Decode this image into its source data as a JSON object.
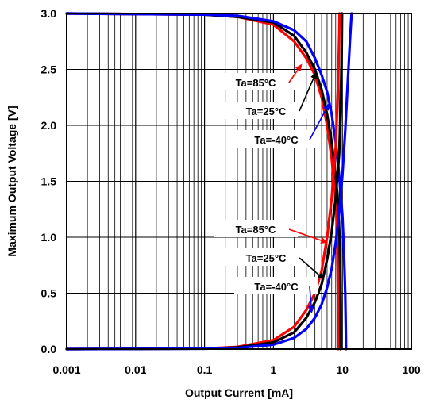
{
  "chart_data": {
    "type": "line",
    "xlabel": "Output Current [mA]",
    "ylabel": "Maximum Output Voltage [V]",
    "xscale": "log",
    "xlim": [
      0.001,
      100
    ],
    "ylim": [
      0.0,
      3.0
    ],
    "x_ticks": [
      "0.001",
      "0.01",
      "0.1",
      "1",
      "10",
      "100"
    ],
    "y_ticks": [
      "0.0",
      "0.5",
      "1.0",
      "1.5",
      "2.0",
      "2.5",
      "3.0"
    ],
    "grid": true,
    "series": [
      {
        "name": "Ta=85°C",
        "color": "#ff0000",
        "group": "upper",
        "points": [
          [
            0.001,
            3.0
          ],
          [
            0.1,
            2.99
          ],
          [
            0.3,
            2.97
          ],
          [
            1,
            2.9
          ],
          [
            2,
            2.75
          ],
          [
            3,
            2.6
          ],
          [
            4,
            2.45
          ],
          [
            5,
            2.25
          ],
          [
            6,
            2.0
          ],
          [
            7,
            1.7
          ],
          [
            7.8,
            1.4
          ],
          [
            8.2,
            1.2
          ],
          [
            8.4,
            1.0
          ],
          [
            8.55,
            0.7
          ],
          [
            8.65,
            0.4
          ],
          [
            8.7,
            0.0
          ]
        ]
      },
      {
        "name": "Ta=25°C",
        "color": "#000000",
        "group": "upper",
        "points": [
          [
            0.001,
            3.0
          ],
          [
            0.1,
            2.99
          ],
          [
            0.3,
            2.97
          ],
          [
            1,
            2.92
          ],
          [
            2,
            2.8
          ],
          [
            3,
            2.65
          ],
          [
            4,
            2.5
          ],
          [
            5,
            2.32
          ],
          [
            6,
            2.1
          ],
          [
            7,
            1.85
          ],
          [
            8,
            1.55
          ],
          [
            8.7,
            1.3
          ],
          [
            9.1,
            1.0
          ],
          [
            9.3,
            0.7
          ],
          [
            9.4,
            0.4
          ],
          [
            9.45,
            0.0
          ]
        ]
      },
      {
        "name": "Ta=-40°C",
        "color": "#0000ff",
        "group": "upper",
        "points": [
          [
            0.001,
            3.0
          ],
          [
            0.1,
            2.99
          ],
          [
            0.3,
            2.98
          ],
          [
            1,
            2.93
          ],
          [
            2,
            2.85
          ],
          [
            3,
            2.75
          ],
          [
            4,
            2.6
          ],
          [
            5,
            2.45
          ],
          [
            6,
            2.3
          ],
          [
            7,
            2.1
          ],
          [
            8,
            1.85
          ],
          [
            9,
            1.55
          ],
          [
            10,
            1.2
          ],
          [
            10.5,
            0.9
          ],
          [
            11,
            0.5
          ],
          [
            11.2,
            0.2
          ],
          [
            11.3,
            0.0
          ]
        ]
      },
      {
        "name": "Ta=85°C",
        "color": "#ff0000",
        "group": "lower",
        "points": [
          [
            0.001,
            0.0
          ],
          [
            0.1,
            0.005
          ],
          [
            0.3,
            0.02
          ],
          [
            1,
            0.08
          ],
          [
            2,
            0.2
          ],
          [
            3,
            0.35
          ],
          [
            4,
            0.5
          ],
          [
            5,
            0.7
          ],
          [
            6,
            1.0
          ],
          [
            7,
            1.35
          ],
          [
            8,
            1.8
          ],
          [
            8.6,
            2.3
          ],
          [
            9,
            2.8
          ],
          [
            9.1,
            3.0
          ]
        ]
      },
      {
        "name": "Ta=25°C",
        "color": "#000000",
        "group": "lower",
        "points": [
          [
            0.001,
            0.0
          ],
          [
            0.1,
            0.004
          ],
          [
            0.3,
            0.015
          ],
          [
            1,
            0.06
          ],
          [
            2,
            0.15
          ],
          [
            3,
            0.28
          ],
          [
            4,
            0.42
          ],
          [
            5,
            0.58
          ],
          [
            6,
            0.8
          ],
          [
            7,
            1.05
          ],
          [
            8,
            1.35
          ],
          [
            9,
            1.75
          ],
          [
            9.5,
            2.2
          ],
          [
            9.8,
            2.7
          ],
          [
            9.9,
            3.0
          ]
        ]
      },
      {
        "name": "Ta=-40°C",
        "color": "#0000ff",
        "group": "lower",
        "points": [
          [
            0.001,
            0.0
          ],
          [
            0.1,
            0.003
          ],
          [
            0.3,
            0.01
          ],
          [
            1,
            0.04
          ],
          [
            2,
            0.1
          ],
          [
            3,
            0.18
          ],
          [
            4,
            0.28
          ],
          [
            5,
            0.4
          ],
          [
            6,
            0.55
          ],
          [
            7,
            0.72
          ],
          [
            8,
            0.95
          ],
          [
            9,
            1.22
          ],
          [
            10,
            1.55
          ],
          [
            11,
            1.95
          ],
          [
            12,
            2.4
          ],
          [
            13,
            2.8
          ],
          [
            13.6,
            3.0
          ]
        ]
      }
    ],
    "annotations": [
      {
        "text": "Ta=85°C",
        "group": "upper",
        "color": "#ff0000",
        "target": [
          2.6,
          2.55
        ]
      },
      {
        "text": "Ta=25°C",
        "group": "upper",
        "color": "#000000",
        "target": [
          4.2,
          2.48
        ]
      },
      {
        "text": "Ta=-40°C",
        "group": "upper",
        "color": "#0000ff",
        "target": [
          6.5,
          2.2
        ]
      },
      {
        "text": "Ta=85°C",
        "group": "lower",
        "color": "#ff0000",
        "target": [
          6.2,
          0.95
        ]
      },
      {
        "text": "Ta=25°C",
        "group": "lower",
        "color": "#000000",
        "target": [
          5.5,
          0.62
        ]
      },
      {
        "text": "Ta=-40°C",
        "group": "lower",
        "color": "#0000ff",
        "target": [
          3.6,
          0.32
        ]
      }
    ]
  }
}
